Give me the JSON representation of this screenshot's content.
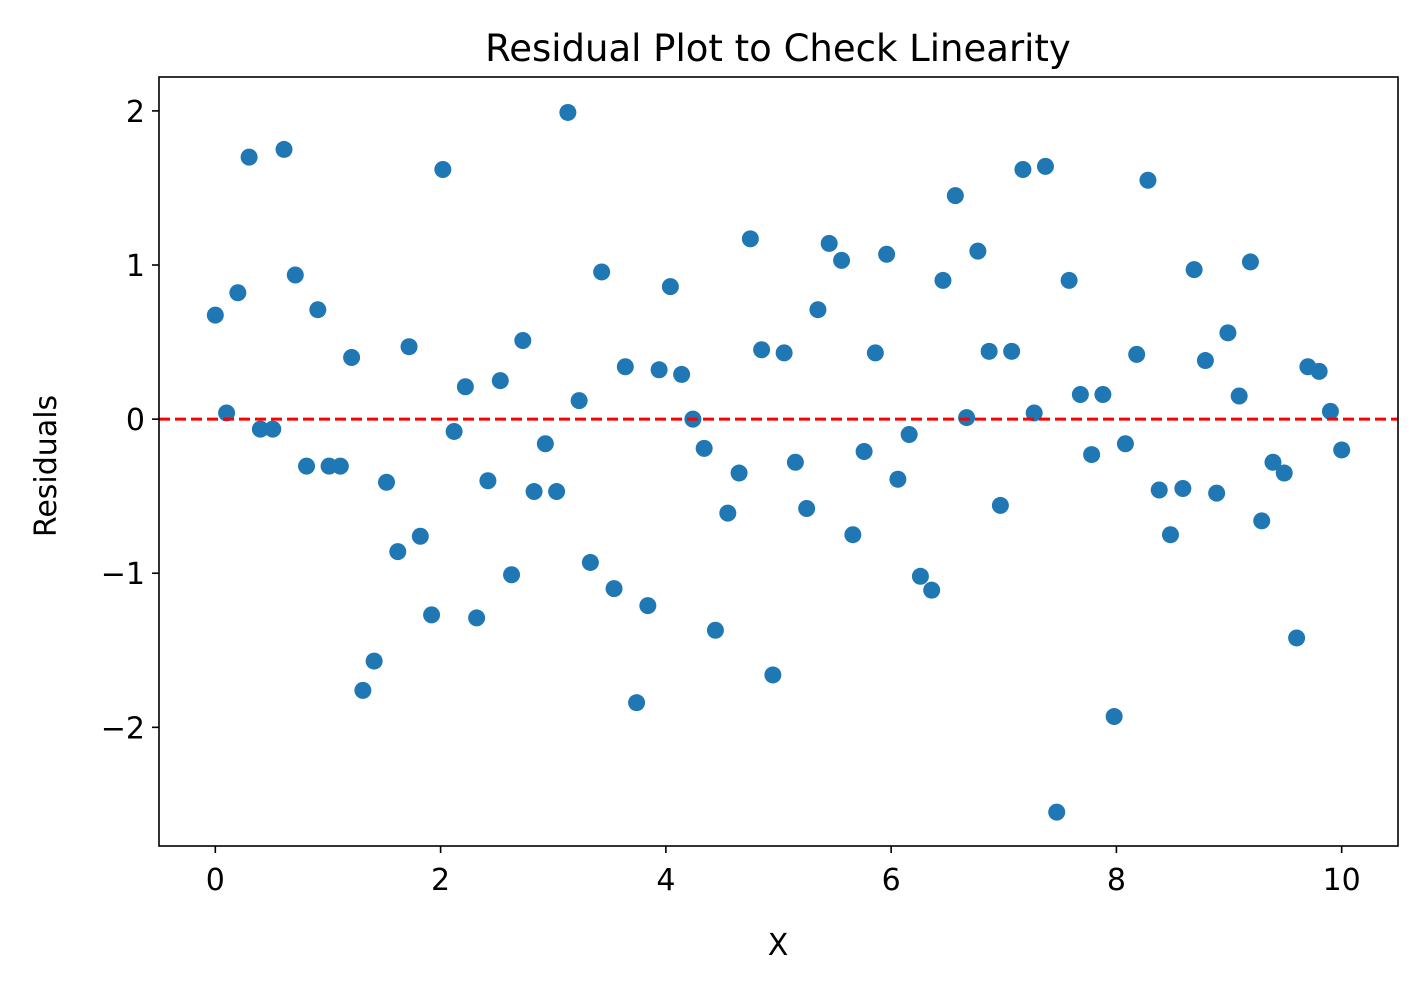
{
  "chart_data": {
    "type": "scatter",
    "title": "Residual Plot to Check Linearity",
    "xlabel": "X",
    "ylabel": "Residuals",
    "xlim": [
      -0.5,
      10.5
    ],
    "ylim": [
      -2.77,
      2.22
    ],
    "xticks": [
      0,
      2,
      4,
      6,
      8,
      10
    ],
    "xtick_labels": [
      "0",
      "2",
      "4",
      "6",
      "8",
      "10"
    ],
    "yticks": [
      -2,
      -1,
      0,
      1,
      2
    ],
    "ytick_labels": [
      "−2",
      "−1",
      "0",
      "1",
      "2"
    ],
    "grid": false,
    "marker_color": "#1f77b4",
    "reference_line": {
      "y": 0,
      "color": "#ff0000",
      "style": "dashed"
    },
    "x": [
      0,
      0.1,
      0.2,
      0.3,
      0.4,
      0.51,
      0.61,
      0.71,
      0.81,
      0.91,
      1.01,
      1.11,
      1.21,
      1.31,
      1.41,
      1.52,
      1.62,
      1.72,
      1.82,
      1.92,
      2.02,
      2.12,
      2.22,
      2.32,
      2.42,
      2.53,
      2.63,
      2.73,
      2.83,
      2.93,
      3.03,
      3.13,
      3.23,
      3.33,
      3.43,
      3.54,
      3.64,
      3.74,
      3.84,
      3.94,
      4.04,
      4.14,
      4.24,
      4.34,
      4.44,
      4.55,
      4.65,
      4.75,
      4.85,
      4.95,
      5.05,
      5.15,
      5.25,
      5.35,
      5.45,
      5.56,
      5.66,
      5.76,
      5.86,
      5.96,
      6.06,
      6.16,
      6.26,
      6.36,
      6.46,
      6.57,
      6.67,
      6.77,
      6.87,
      6.97,
      7.07,
      7.17,
      7.27,
      7.37,
      7.47,
      7.58,
      7.68,
      7.78,
      7.88,
      7.98,
      8.08,
      8.18,
      8.28,
      8.38,
      8.48,
      8.59,
      8.69,
      8.79,
      8.89,
      8.99,
      9.09,
      9.19,
      9.29,
      9.39,
      9.49,
      9.6,
      9.7,
      9.8,
      9.9,
      10.0
    ],
    "y": [
      0.675,
      0.04,
      0.82,
      1.7,
      -0.065,
      -0.065,
      1.75,
      0.935,
      -0.305,
      0.71,
      -0.305,
      -0.305,
      0.4,
      -1.76,
      -1.57,
      -0.41,
      -0.86,
      0.47,
      -0.76,
      -1.27,
      1.62,
      -0.08,
      0.21,
      -1.29,
      -0.4,
      0.25,
      -1.01,
      0.51,
      -0.47,
      -0.16,
      -0.47,
      1.99,
      0.12,
      -0.93,
      0.955,
      -1.1,
      0.34,
      -1.84,
      -1.21,
      0.32,
      0.86,
      0.29,
      0.0,
      -0.19,
      -1.37,
      -0.61,
      -0.35,
      1.17,
      0.45,
      -1.66,
      0.43,
      -0.28,
      -0.58,
      0.71,
      1.14,
      1.03,
      -0.75,
      -0.21,
      0.43,
      1.07,
      -0.39,
      -0.1,
      -1.02,
      -1.11,
      0.9,
      1.45,
      0.01,
      1.09,
      0.44,
      -0.56,
      0.44,
      1.62,
      0.04,
      1.64,
      -2.55,
      0.9,
      0.16,
      -0.23,
      0.16,
      -1.93,
      -0.16,
      0.42,
      1.55,
      -0.46,
      -0.75,
      -0.45,
      0.97,
      0.38,
      -0.48,
      0.56,
      0.15,
      1.02,
      -0.66,
      -0.28,
      -0.35,
      -1.42,
      0.34,
      0.31,
      0.05,
      -0.2
    ]
  }
}
